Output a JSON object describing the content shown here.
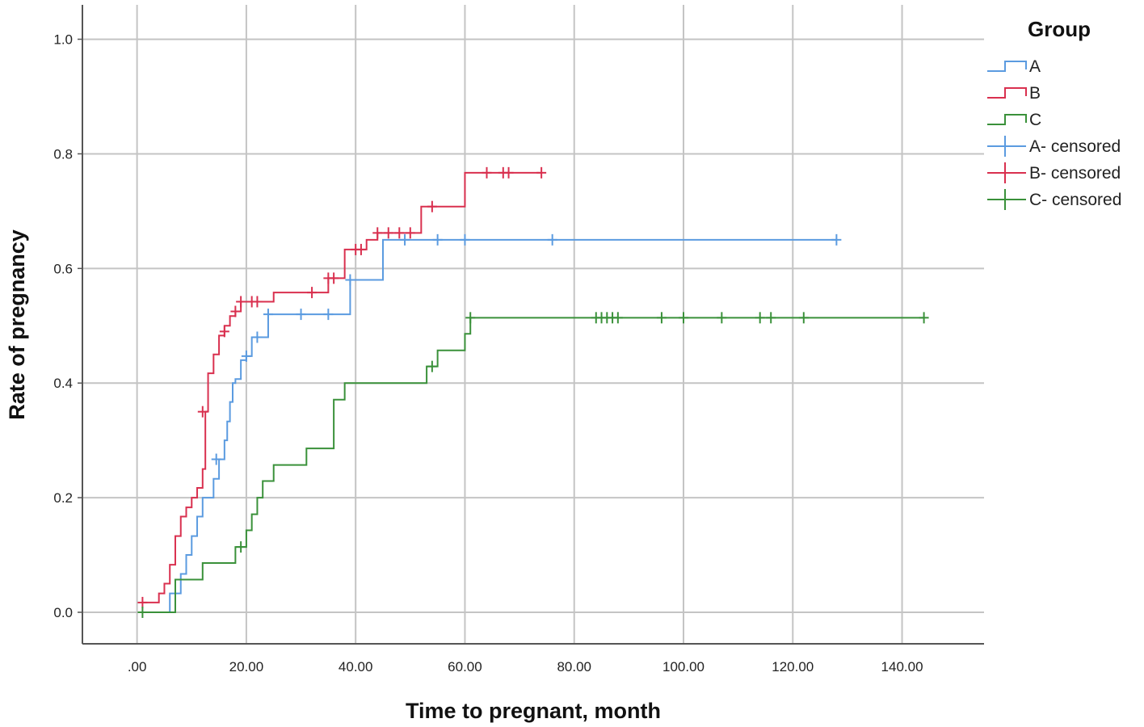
{
  "chart_data": {
    "type": "line",
    "subtype": "kaplan-meier step",
    "xlabel": "Time to pregnant, month",
    "ylabel": "Rate of pregnancy",
    "xlim": [
      -10,
      155
    ],
    "ylim": [
      -0.055,
      1.06
    ],
    "xticks": [
      0,
      20,
      40,
      60,
      80,
      100,
      120,
      140
    ],
    "xtick_labels": [
      ".00",
      "20.00",
      "40.00",
      "60.00",
      "80.00",
      "100.00",
      "120.00",
      "140.00"
    ],
    "yticks": [
      0,
      0.2,
      0.4,
      0.6,
      0.8,
      1.0
    ],
    "ytick_labels": [
      "0.0",
      "0.2",
      "0.4",
      "0.6",
      "0.8",
      "1.0"
    ],
    "grid": true,
    "legend_title": "Group",
    "legend_position": "right",
    "legend_items": [
      {
        "label": "A",
        "series": "A",
        "kind": "line"
      },
      {
        "label": "B",
        "series": "B",
        "kind": "line"
      },
      {
        "label": "C",
        "series": "C",
        "kind": "line"
      },
      {
        "label": "A- censored",
        "series": "A",
        "kind": "censor"
      },
      {
        "label": "B- censored",
        "series": "B",
        "kind": "censor"
      },
      {
        "label": "C- censored",
        "series": "C",
        "kind": "censor"
      }
    ],
    "series": [
      {
        "name": "A",
        "color": "#5b9be0",
        "steps": [
          [
            1,
            0
          ],
          [
            6,
            0.033
          ],
          [
            8,
            0.067
          ],
          [
            9,
            0.1
          ],
          [
            10,
            0.133
          ],
          [
            11,
            0.167
          ],
          [
            12,
            0.2
          ],
          [
            14,
            0.233
          ],
          [
            15,
            0.267
          ],
          [
            16,
            0.3
          ],
          [
            16.5,
            0.333
          ],
          [
            17,
            0.367
          ],
          [
            17.5,
            0.4
          ],
          [
            18,
            0.407
          ],
          [
            19,
            0.44
          ],
          [
            20,
            0.447
          ],
          [
            21,
            0.48
          ],
          [
            24,
            0.52
          ],
          [
            39,
            0.58
          ],
          [
            45,
            0.65
          ],
          [
            128,
            0.65
          ]
        ],
        "censored": [
          [
            14.5,
            0.267
          ],
          [
            20,
            0.447
          ],
          [
            22,
            0.48
          ],
          [
            24,
            0.52
          ],
          [
            30,
            0.52
          ],
          [
            35,
            0.52
          ],
          [
            39,
            0.58
          ],
          [
            49,
            0.65
          ],
          [
            55,
            0.65
          ],
          [
            60,
            0.65
          ],
          [
            76,
            0.65
          ],
          [
            128,
            0.65
          ]
        ]
      },
      {
        "name": "B",
        "color": "#d9304f",
        "steps": [
          [
            1,
            0.017
          ],
          [
            3,
            0.017
          ],
          [
            4,
            0.033
          ],
          [
            5,
            0.05
          ],
          [
            6,
            0.083
          ],
          [
            7,
            0.133
          ],
          [
            8,
            0.167
          ],
          [
            9,
            0.183
          ],
          [
            10,
            0.2
          ],
          [
            11,
            0.217
          ],
          [
            12,
            0.25
          ],
          [
            12.5,
            0.35
          ],
          [
            13,
            0.417
          ],
          [
            14,
            0.45
          ],
          [
            15,
            0.483
          ],
          [
            16,
            0.5
          ],
          [
            17,
            0.517
          ],
          [
            18,
            0.525
          ],
          [
            19,
            0.542
          ],
          [
            25,
            0.558
          ],
          [
            35,
            0.583
          ],
          [
            38,
            0.633
          ],
          [
            42,
            0.65
          ],
          [
            44,
            0.662
          ],
          [
            52,
            0.708
          ],
          [
            60,
            0.767
          ],
          [
            74,
            0.767
          ]
        ],
        "censored": [
          [
            1,
            0.017
          ],
          [
            12,
            0.35
          ],
          [
            16,
            0.49
          ],
          [
            18,
            0.525
          ],
          [
            19,
            0.542
          ],
          [
            21,
            0.542
          ],
          [
            22,
            0.542
          ],
          [
            32,
            0.558
          ],
          [
            35,
            0.583
          ],
          [
            36,
            0.583
          ],
          [
            40,
            0.633
          ],
          [
            41,
            0.633
          ],
          [
            44,
            0.662
          ],
          [
            46,
            0.662
          ],
          [
            48,
            0.662
          ],
          [
            50,
            0.662
          ],
          [
            54,
            0.708
          ],
          [
            64,
            0.767
          ],
          [
            67,
            0.767
          ],
          [
            68,
            0.767
          ],
          [
            74,
            0.767
          ]
        ]
      },
      {
        "name": "C",
        "color": "#3a913a",
        "steps": [
          [
            1,
            0
          ],
          [
            7,
            0.057
          ],
          [
            12,
            0.086
          ],
          [
            18,
            0.114
          ],
          [
            20,
            0.143
          ],
          [
            21,
            0.171
          ],
          [
            22,
            0.2
          ],
          [
            23,
            0.229
          ],
          [
            25,
            0.257
          ],
          [
            31,
            0.286
          ],
          [
            36,
            0.371
          ],
          [
            38,
            0.4
          ],
          [
            53,
            0.429
          ],
          [
            55,
            0.457
          ],
          [
            60,
            0.486
          ],
          [
            61,
            0.514
          ],
          [
            144,
            0.514
          ]
        ],
        "censored": [
          [
            1,
            0
          ],
          [
            19,
            0.114
          ],
          [
            54,
            0.429
          ],
          [
            61,
            0.514
          ],
          [
            84,
            0.514
          ],
          [
            85,
            0.514
          ],
          [
            86,
            0.514
          ],
          [
            87,
            0.514
          ],
          [
            88,
            0.514
          ],
          [
            96,
            0.514
          ],
          [
            100,
            0.514
          ],
          [
            107,
            0.514
          ],
          [
            114,
            0.514
          ],
          [
            116,
            0.514
          ],
          [
            122,
            0.514
          ],
          [
            144,
            0.514
          ]
        ]
      }
    ]
  }
}
